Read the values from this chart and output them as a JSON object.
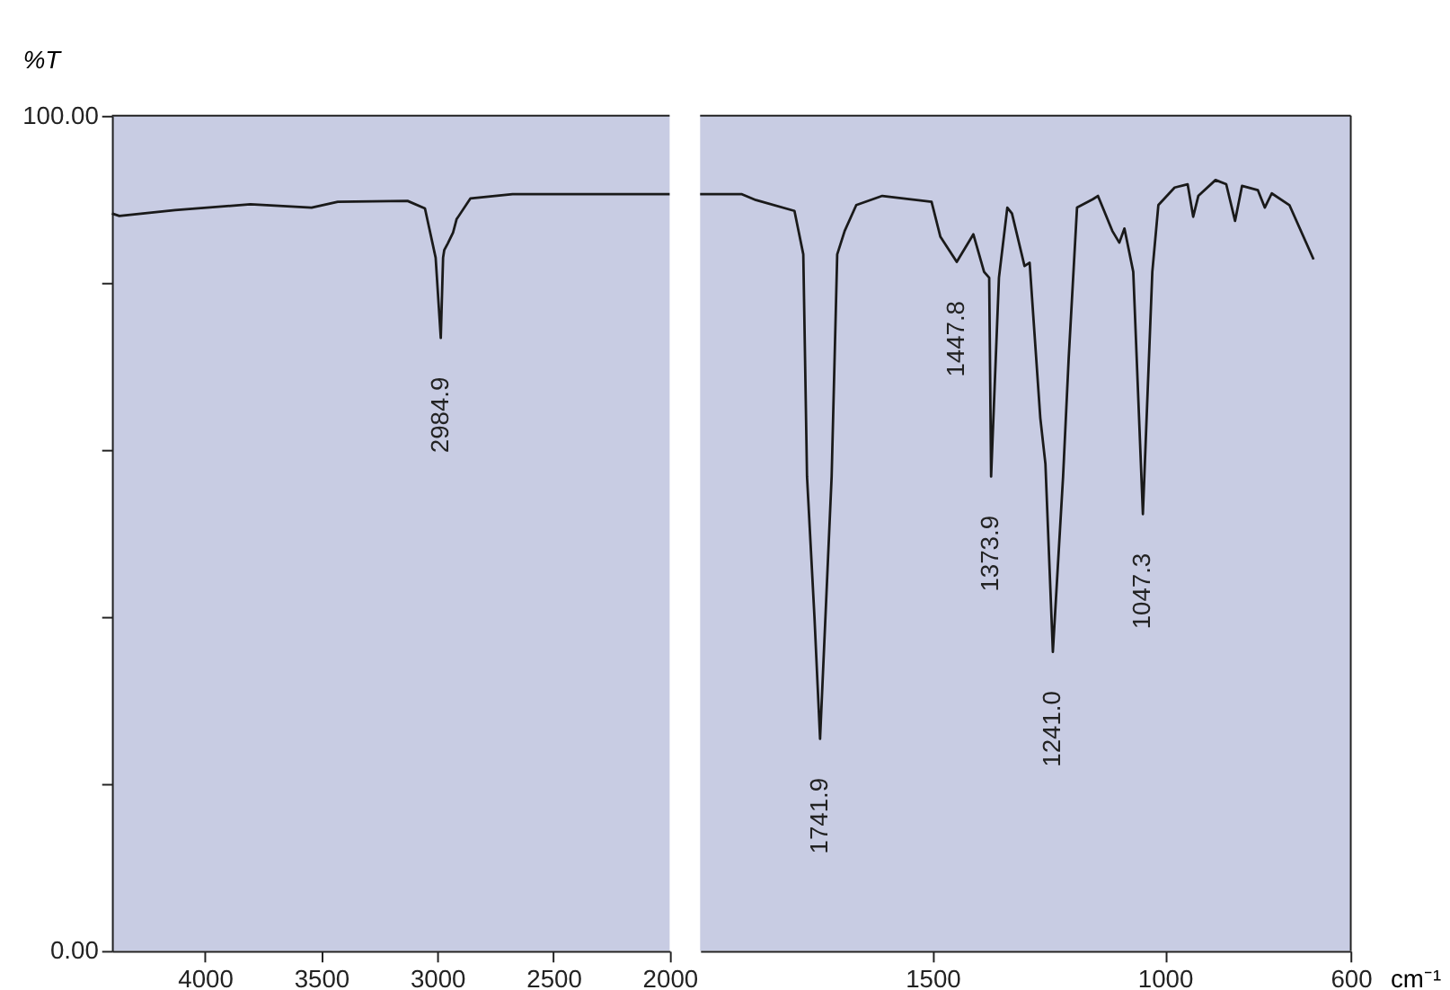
{
  "chart_data": [
    {
      "type": "line",
      "ylabel": "%T",
      "x": [
        4400,
        4368,
        4128,
        3804,
        3541,
        3428,
        3128,
        3053,
        3007,
        2984.9,
        2975,
        2970,
        2955,
        2932,
        2917,
        2857,
        2676,
        2075,
        2000
      ],
      "series": [
        {
          "color": "#1a1a1a",
          "values": [
            88.3,
            88.0,
            88.7,
            89.4,
            89.0,
            89.7,
            89.8,
            88.9,
            83.0,
            73.4,
            83.0,
            83.9,
            84.7,
            86.0,
            87.6,
            90.1,
            90.6,
            90.6,
            90.6
          ]
        }
      ],
      "xlim": [
        4400,
        2000
      ],
      "xticks": [
        4000,
        3500,
        3000,
        2500,
        2000
      ],
      "ylim": [
        0,
        100
      ],
      "yticks": [
        {
          "value": 0,
          "label": "0.00"
        },
        {
          "value": 20,
          "label": null
        },
        {
          "value": 40,
          "label": null
        },
        {
          "value": 60,
          "label": null
        },
        {
          "value": 80,
          "label": null
        },
        {
          "value": 100,
          "label": "100.00"
        }
      ],
      "grid": false,
      "annotations": [
        {
          "text": "2984.9",
          "x": 2984.9,
          "y": 73.4
        }
      ]
    },
    {
      "type": "line",
      "xlabel": "cm⁻¹",
      "x": [
        2000,
        1910,
        1880,
        1797,
        1778,
        1770,
        1754,
        1741.9,
        1717,
        1705,
        1689,
        1664,
        1608,
        1502,
        1483,
        1447.8,
        1412,
        1389,
        1378,
        1373.9,
        1357,
        1339,
        1329,
        1302,
        1291,
        1268,
        1257,
        1241.0,
        1219,
        1207,
        1189,
        1155,
        1144,
        1113,
        1098,
        1087,
        1068,
        1047.3,
        1027,
        1014,
        979,
        951,
        939,
        928,
        891,
        868,
        849,
        834,
        800,
        785,
        770,
        732,
        680
      ],
      "series": [
        {
          "color": "#1a1a1a",
          "values": [
            90.6,
            90.6,
            89.9,
            88.6,
            83.4,
            56.8,
            40.0,
            25.4,
            56.8,
            83.4,
            86.2,
            89.3,
            90.4,
            89.7,
            85.5,
            82.5,
            85.8,
            81.3,
            80.6,
            56.8,
            80.6,
            89.0,
            88.3,
            82.0,
            82.4,
            63.8,
            58.3,
            35.8,
            56.8,
            70.9,
            89.0,
            90.0,
            90.4,
            86.2,
            84.8,
            86.5,
            81.3,
            52.3,
            81.3,
            89.3,
            91.4,
            91.8,
            87.9,
            90.4,
            92.3,
            91.8,
            87.4,
            91.6,
            91.1,
            89.0,
            90.7,
            89.3,
            82.8
          ]
        }
      ],
      "xlim": [
        2000,
        600
      ],
      "xticks": [
        1500,
        1000,
        600
      ],
      "ylim": [
        0,
        100
      ],
      "tick_labels": "x",
      "grid": false,
      "annotations": [
        {
          "text": "1741.9",
          "x": 1741.9,
          "y": 25.4
        },
        {
          "text": "1447.8",
          "x": 1447.8,
          "y": 82.5
        },
        {
          "text": "1373.9",
          "x": 1373.9,
          "y": 56.8
        },
        {
          "text": "1241.0",
          "x": 1241.0,
          "y": 35.8
        },
        {
          "text": "1047.3",
          "x": 1047.3,
          "y": 52.3
        }
      ]
    }
  ]
}
